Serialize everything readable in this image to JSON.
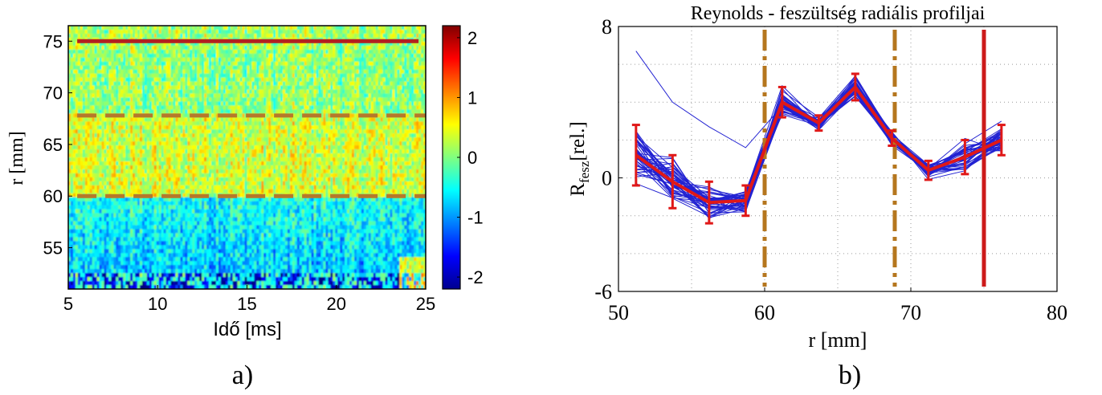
{
  "chart_data": [
    {
      "panel_label": "a)",
      "type": "heatmap",
      "title": "",
      "xlabel": "Idő [ms]",
      "ylabel": "r [mm]",
      "xlim": [
        5,
        25
      ],
      "ylim": [
        51,
        76.5
      ],
      "xticks": [
        5,
        10,
        15,
        20,
        25
      ],
      "yticks": [
        55,
        60,
        65,
        70,
        75
      ],
      "colormap": "jet",
      "colorbar": {
        "range": [
          -2.2,
          2.2
        ],
        "ticks": [
          -2,
          -1,
          0,
          1,
          2
        ]
      },
      "colors": {
        "solid_line": "#b32020",
        "dashed_line": "#b6782a"
      },
      "reference_lines": [
        {
          "r": 75,
          "style": "solid"
        },
        {
          "r": 67.8,
          "style": "dashed"
        },
        {
          "r": 60,
          "style": "dashed"
        }
      ]
    },
    {
      "panel_label": "b)",
      "type": "line",
      "title": "Reynolds - feszültség radiális profiljai",
      "xlabel": "r [mm]",
      "ylabel_main": "R",
      "ylabel_sub": "fesz",
      "ylabel_unit": "[rel.]",
      "xlim": [
        50,
        80
      ],
      "ylim": [
        -6,
        8
      ],
      "xticks": [
        50,
        60,
        70,
        80
      ],
      "yticks": [
        -6,
        0,
        8
      ],
      "grid": true,
      "colors": {
        "profiles": "#2323d2",
        "mean": "#e01818",
        "dashed": "#b5761e",
        "solid": "#cc1a1a"
      },
      "x": [
        51.2,
        53.7,
        56.2,
        58.7,
        61.2,
        63.7,
        66.2,
        68.7,
        71.2,
        73.7,
        76.2
      ],
      "mean": [
        1.2,
        -0.2,
        -1.3,
        -1.2,
        4.0,
        2.9,
        4.8,
        2.1,
        0.4,
        1.1,
        2.0
      ],
      "err": [
        1.6,
        1.4,
        1.1,
        0.8,
        0.8,
        0.4,
        0.7,
        0.4,
        0.5,
        0.9,
        0.8
      ],
      "outlier_profile": [
        6.7,
        4.0,
        2.7,
        1.6,
        3.8,
        3.0,
        4.3,
        2.4,
        0.2,
        1.8,
        3.0
      ],
      "vertical_lines": [
        {
          "x": 60,
          "style": "dashdot"
        },
        {
          "x": 68.9,
          "style": "dashdot"
        },
        {
          "x": 75,
          "style": "solid"
        }
      ]
    }
  ]
}
